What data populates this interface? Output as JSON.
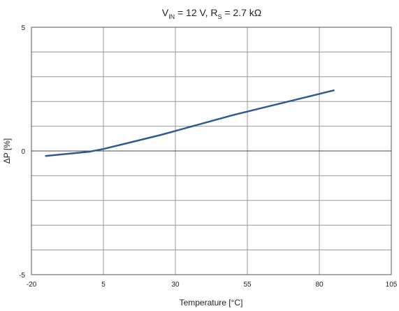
{
  "chart_data": {
    "type": "line",
    "title_parts": {
      "v": "V",
      "v_sub": "IN",
      "mid": " = 12 V,  R",
      "r_sub": "S",
      "end": " = 2.7 kΩ"
    },
    "xlabel": "Temperature [°C]",
    "ylabel": "ΔP  [%]",
    "xlim": [
      -20,
      105
    ],
    "ylim": [
      -5,
      5
    ],
    "x_ticks": [
      -20,
      5,
      30,
      55,
      80,
      105
    ],
    "y_ticks": [
      -5,
      0,
      5
    ],
    "y_minor_step": 1,
    "grid": true,
    "line_color": "#2e5b8e",
    "series": [
      {
        "x": [
          -15,
          0,
          5,
          25,
          50,
          85
        ],
        "y": [
          -0.2,
          -0.03,
          0.08,
          0.65,
          1.45,
          2.45
        ]
      }
    ]
  }
}
